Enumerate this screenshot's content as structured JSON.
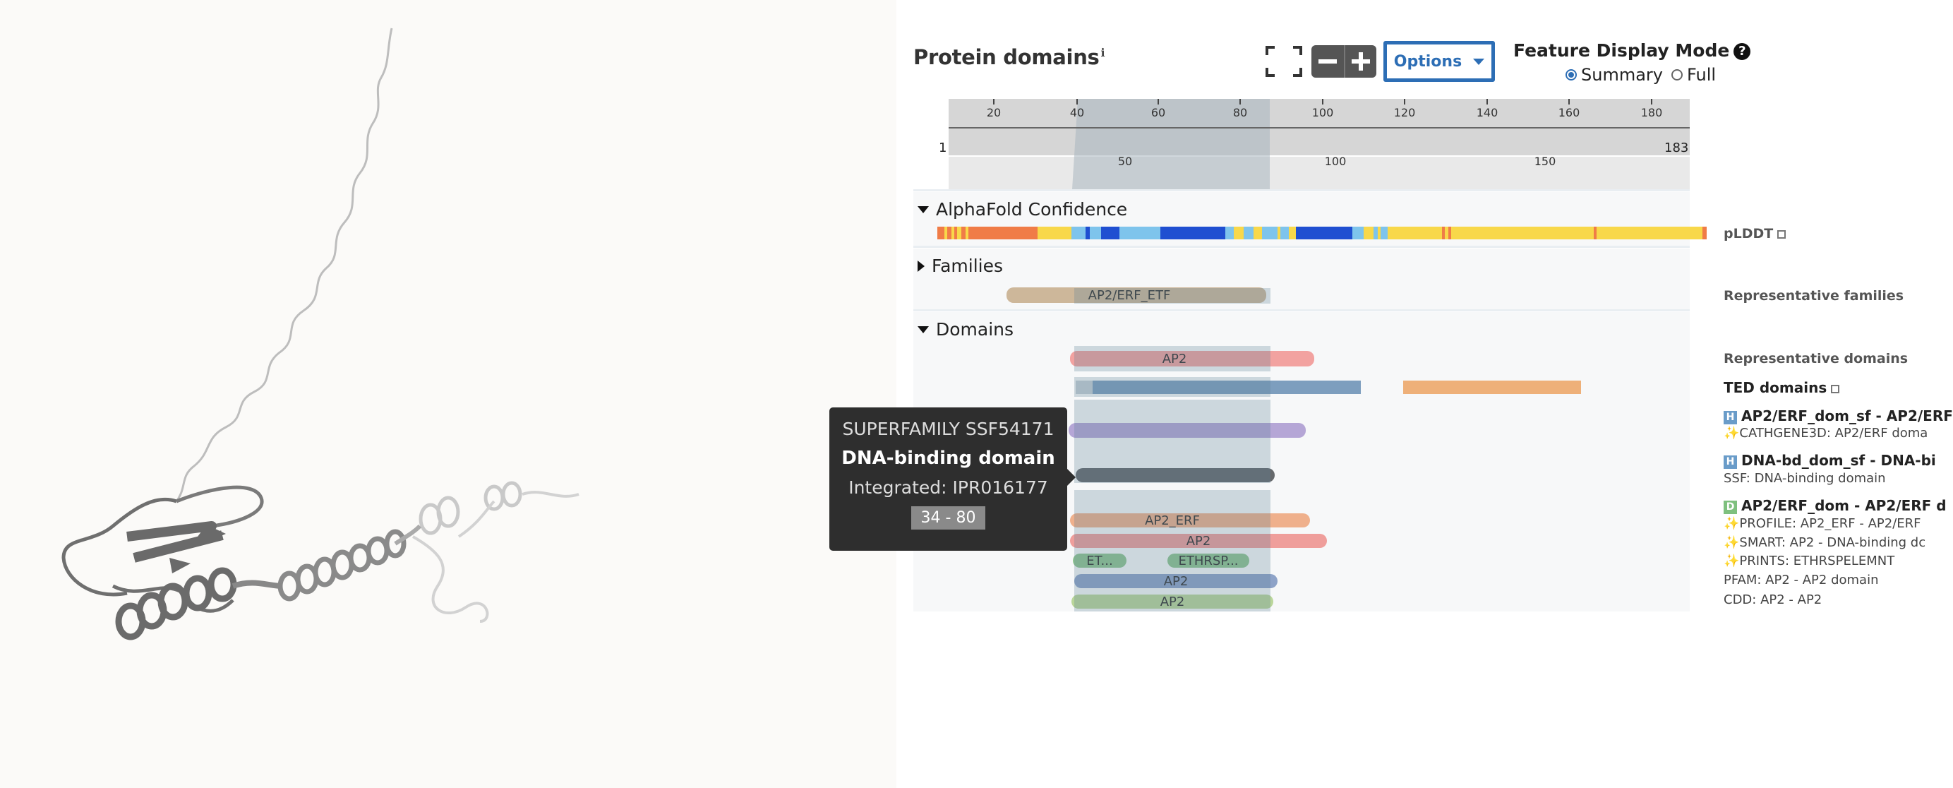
{
  "header": {
    "title": "Protein domains",
    "title_info_icon": "info-icon",
    "options_label": "Options",
    "feature_display_mode": {
      "label": "Feature Display Mode",
      "options": [
        "Summary",
        "Full"
      ],
      "selected": "Summary"
    }
  },
  "navigation": {
    "top_ticks": [
      "20",
      "40",
      "60",
      "80",
      "100",
      "120",
      "140",
      "160",
      "180"
    ],
    "start": "1",
    "end": "183",
    "bottom_ticks": [
      "50",
      "100",
      "150"
    ],
    "zoom_range": [
      34,
      80
    ]
  },
  "sections": {
    "alphafold": {
      "title": "AlphaFold Confidence",
      "label": "pLDDT",
      "colors": {
        "very_high": "#1f4fd1",
        "high": "#7ec4ec",
        "low": "#f8d84a",
        "very_low": "#f07c47"
      }
    },
    "families": {
      "title": "Families",
      "label": "Representative families",
      "bar_label": "AP2/ERF_ETF"
    },
    "domains": {
      "title": "Domains",
      "labels": {
        "representative": "Representative domains",
        "ted": "TED domains",
        "entry1_title": "AP2/ERF_dom_sf - AP2/ERF",
        "entry1_sub": "✨CATHGENE3D: AP2/ERF doma",
        "entry2_title": "DNA-bd_dom_sf - DNA-bi",
        "entry2_sub": "SSF: DNA-binding domain",
        "entry3_title": "AP2/ERF_dom - AP2/ERF d",
        "entry3_profile": "✨PROFILE: AP2_ERF - AP2/ERF",
        "entry3_smart": "✨SMART: AP2 - DNA-binding dc",
        "entry3_prints": "✨PRINTS: ETHRSPELEMNT",
        "entry3_pfam": "PFAM: AP2 - AP2 domain",
        "entry3_cdd": "CDD: AP2 - AP2"
      },
      "bars": {
        "representative": "AP2",
        "profile": "AP2_ERF",
        "smart": "AP2",
        "prints_1": "ET...",
        "prints_2": "ETHRSP...",
        "pfam": "AP2",
        "cdd": "AP2"
      },
      "badges": {
        "homologous": "H",
        "domain": "D"
      }
    }
  },
  "tooltip": {
    "source": "SUPERFAMILY  SSF54171",
    "name": "DNA-binding domain",
    "integrated": "Integrated: IPR016177",
    "range": "34 - 80"
  },
  "colors": {
    "accent": "#2d6eb5",
    "tooltip_bg": "#2e2e2e",
    "highlight": "#5e8096"
  }
}
